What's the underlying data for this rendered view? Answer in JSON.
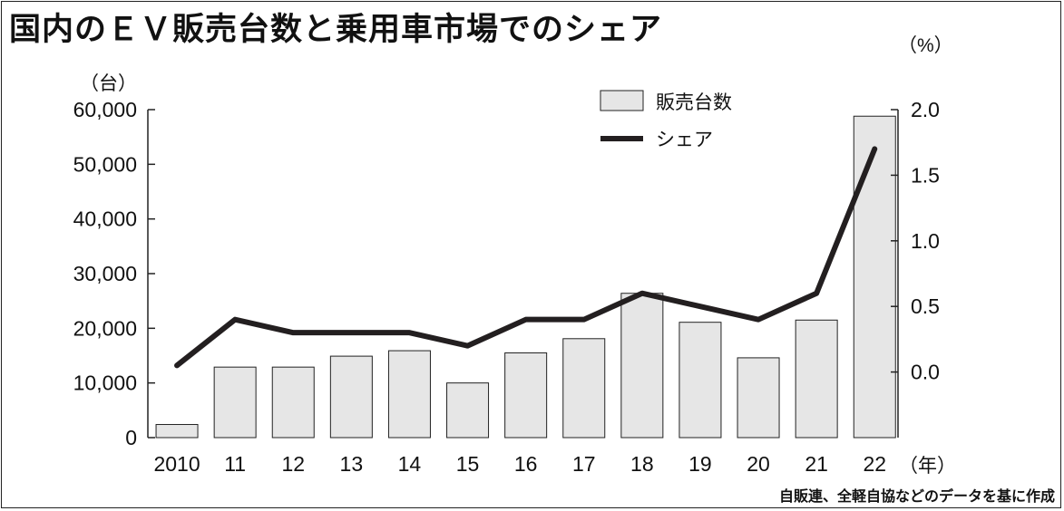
{
  "title": "国内のＥＶ販売台数と乗用車市場でのシェア",
  "source": "自販連、全軽自協などのデータを基に作成",
  "chart_data": {
    "type": "bar",
    "categories": [
      "2010",
      "11",
      "12",
      "13",
      "14",
      "15",
      "16",
      "17",
      "18",
      "19",
      "20",
      "21",
      "22"
    ],
    "x_unit": "（年）",
    "y_left": {
      "unit": "（台）",
      "ylim": [
        0,
        60000
      ],
      "ticks": [
        "0",
        "10,000",
        "20,000",
        "30,000",
        "40,000",
        "50,000",
        "60,000"
      ]
    },
    "y_right": {
      "unit": "（%）",
      "ylim": [
        -0.5,
        2.0
      ],
      "ticks": [
        "0.0",
        "0.5",
        "1.0",
        "1.5",
        "2.0"
      ]
    },
    "series": [
      {
        "name": "販売台数",
        "type": "bar",
        "axis": "left",
        "color": "#e6e6e6",
        "values": [
          2400,
          12900,
          12900,
          14900,
          15900,
          10000,
          15500,
          18100,
          26400,
          21100,
          14600,
          21500,
          58800
        ]
      },
      {
        "name": "シェア",
        "type": "line",
        "axis": "right",
        "color": "#231f20",
        "values": [
          0.05,
          0.4,
          0.3,
          0.3,
          0.3,
          0.2,
          0.4,
          0.4,
          0.6,
          0.5,
          0.4,
          0.6,
          1.7
        ]
      }
    ],
    "legend_position": "top-right",
    "grid": false
  }
}
